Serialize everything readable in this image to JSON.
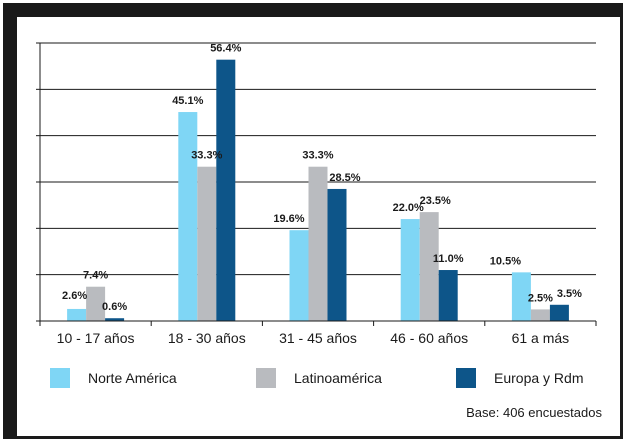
{
  "chart_data": {
    "type": "bar",
    "categories": [
      "10 - 17 años",
      "18 - 30 años",
      "31 - 45 años",
      "46 - 60 años",
      "61 a más"
    ],
    "series": [
      {
        "name": "Norte América",
        "color": "#7fd6f5",
        "values": [
          2.6,
          45.1,
          19.6,
          22.0,
          10.5
        ],
        "labels": [
          "2.6%",
          "45.1%",
          "19.6%",
          "22.0%",
          "10.5%"
        ]
      },
      {
        "name": "Latinoamérica",
        "color": "#b9bbbf",
        "values": [
          7.4,
          33.3,
          33.3,
          23.5,
          2.5
        ],
        "labels": [
          "7.4%",
          "33.3%",
          "33.3%",
          "23.5%",
          "2.5%"
        ]
      },
      {
        "name": "Europa y Rdm",
        "color": "#0d5589",
        "values": [
          0.6,
          56.4,
          28.5,
          11.0,
          3.5
        ],
        "labels": [
          "0.6%",
          "56.4%",
          "28.5%",
          "11.0%",
          "3.5%"
        ]
      }
    ],
    "ylim": [
      0,
      60
    ],
    "grid": true,
    "legend_position": "bottom",
    "note": "Base: 406 encuestados"
  }
}
